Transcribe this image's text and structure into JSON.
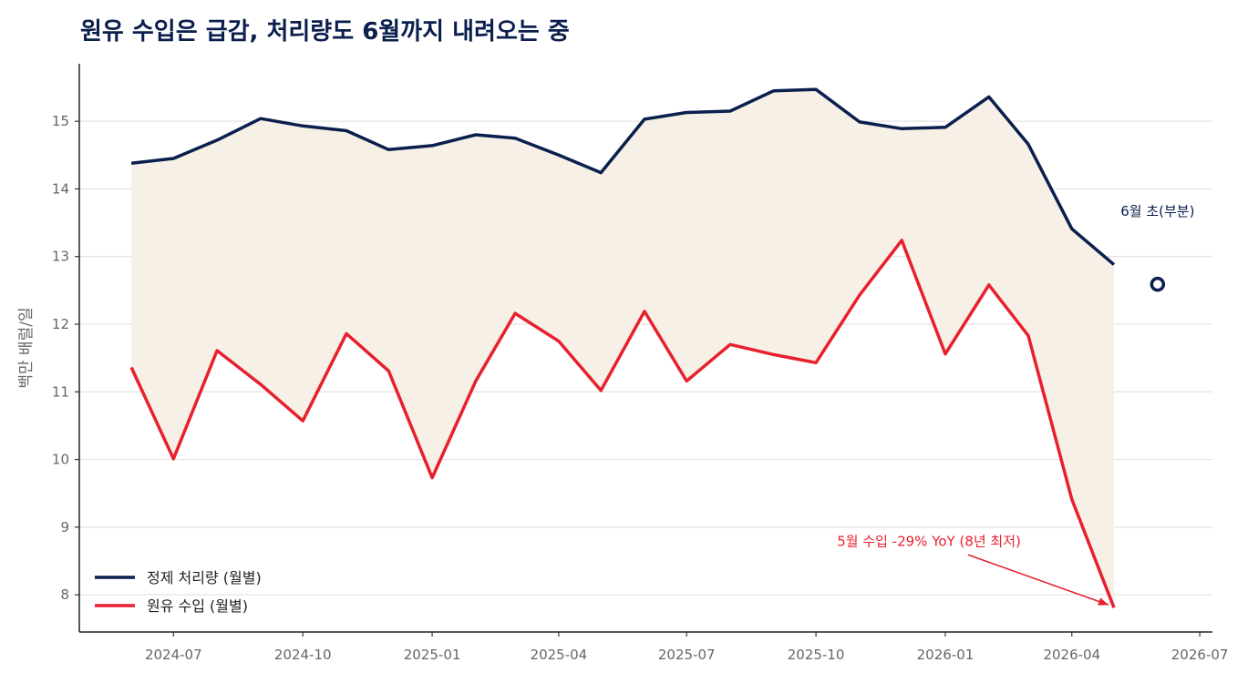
{
  "chart_data": {
    "type": "line",
    "title": "원유 수입은 급감, 처리량도 6월까지 내려오는 중",
    "ylabel": "백만 배럴/일",
    "xlabel": "",
    "ylim": [
      7.45,
      15.85
    ],
    "xlim": [
      "2024-04-25",
      "2026-07-10"
    ],
    "y_ticks": [
      "8",
      "9",
      "10",
      "11",
      "12",
      "13",
      "14",
      "15"
    ],
    "x_ticks": [
      "2024-07",
      "2024-10",
      "2025-01",
      "2025-04",
      "2025-07",
      "2025-10",
      "2026-01",
      "2026-04",
      "2026-07"
    ],
    "grid": "horizontal",
    "legend_position": "lower-left",
    "x": [
      "2024-06-01",
      "2024-07-01",
      "2024-08-01",
      "2024-09-01",
      "2024-10-01",
      "2024-11-01",
      "2024-12-01",
      "2025-01-01",
      "2025-02-01",
      "2025-03-01",
      "2025-04-01",
      "2025-05-01",
      "2025-06-01",
      "2025-07-01",
      "2025-08-01",
      "2025-09-01",
      "2025-10-01",
      "2025-11-01",
      "2025-12-01",
      "2026-01-01",
      "2026-02-01",
      "2026-03-01",
      "2026-04-01",
      "2026-05-01"
    ],
    "series": [
      {
        "name": "정제 처리량 (월별)",
        "color": "#0b1f4d",
        "values": [
          14.38,
          14.45,
          14.72,
          15.04,
          14.93,
          14.86,
          14.58,
          14.64,
          14.8,
          14.75,
          14.5,
          14.24,
          15.03,
          15.13,
          15.15,
          15.45,
          15.47,
          14.99,
          14.89,
          14.91,
          15.36,
          14.66,
          13.41,
          12.88
        ]
      },
      {
        "name": "원유 수입 (월별)",
        "color": "#e8202e",
        "values": [
          11.36,
          10.01,
          11.61,
          11.11,
          10.57,
          11.86,
          11.31,
          9.73,
          11.16,
          12.16,
          11.75,
          11.02,
          12.19,
          11.16,
          11.7,
          11.55,
          11.43,
          12.43,
          13.24,
          11.56,
          12.58,
          11.83,
          9.41,
          7.81
        ]
      }
    ],
    "partial_point": {
      "x": "2026-06-01",
      "y": 12.59,
      "label": "6월 초(부분)",
      "color": "#0b1f4d"
    },
    "fill_between": {
      "color": "#f7f0e6"
    },
    "annotation": {
      "text": "5월 수입 -29% YoY (8년 최저)",
      "x": "2026-05-01",
      "y": 7.81,
      "color": "#e8202e"
    }
  }
}
